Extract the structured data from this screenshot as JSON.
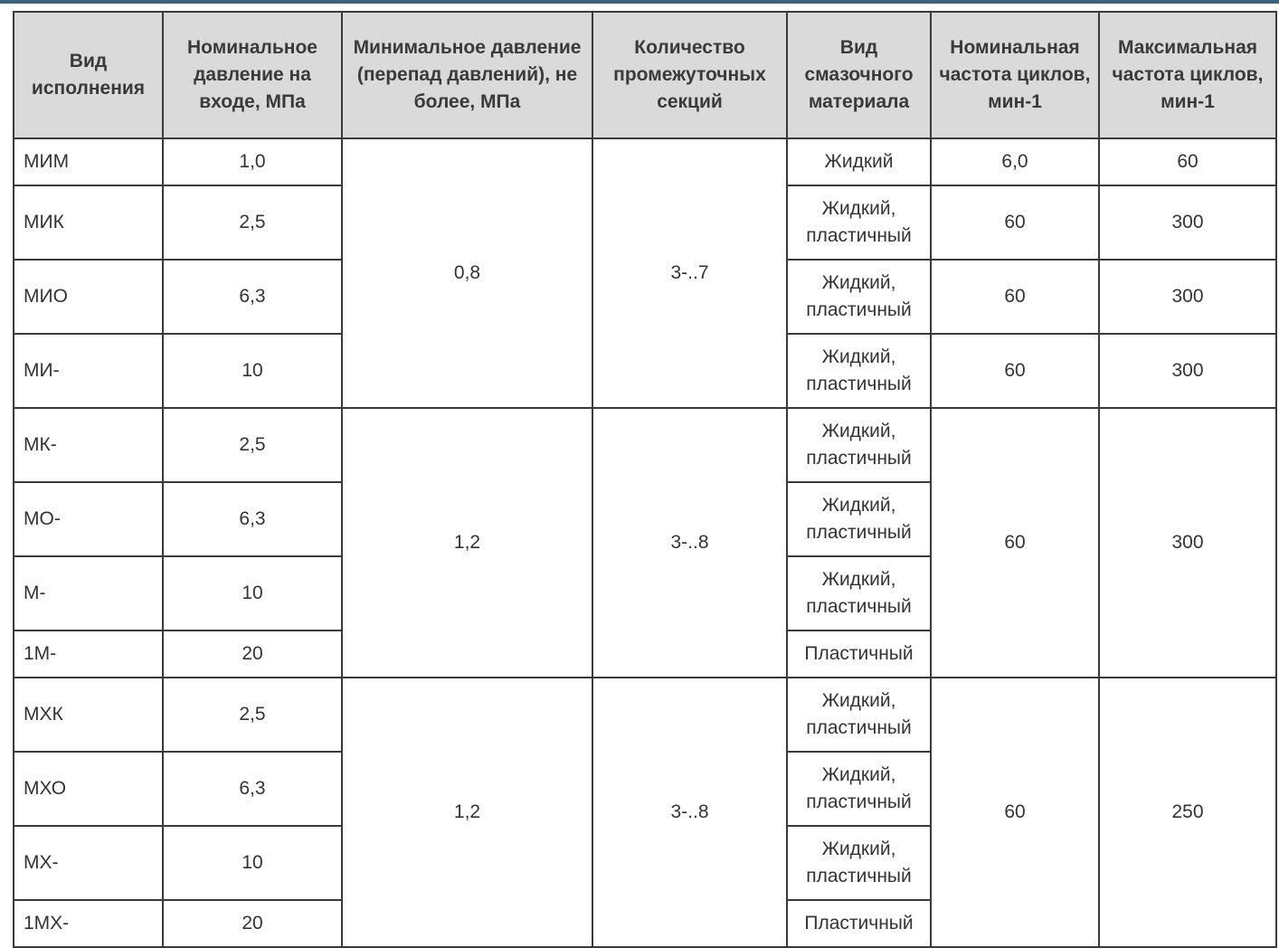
{
  "headers": [
    "Вид исполнения",
    "Номинальное давление на входе, МПа",
    "Минимальное давление (перепад давлений), не более, МПа",
    "Количество промежуточных секций",
    "Вид смазочного материала",
    "Номинальная частота циклов, мин-1",
    "Максимальная частота циклов, мин-1"
  ],
  "groups": [
    {
      "min_pressure": "0,8",
      "sections": "3-..7",
      "rows": [
        {
          "type": "МИМ",
          "pressure": "1,0",
          "lubricant": "Жидкий",
          "nominal_freq": "6,0",
          "max_freq": "60"
        },
        {
          "type": "МИК",
          "pressure": "2,5",
          "lubricant": "Жидкий, пластичный",
          "nominal_freq": "60",
          "max_freq": "300"
        },
        {
          "type": "МИО",
          "pressure": "6,3",
          "lubricant": "Жидкий, пластичный",
          "nominal_freq": "60",
          "max_freq": "300"
        },
        {
          "type": "МИ-",
          "pressure": "10",
          "lubricant": "Жидкий, пластичный",
          "nominal_freq": "60",
          "max_freq": "300"
        }
      ]
    },
    {
      "min_pressure": "1,2",
      "sections": "3-..8",
      "nominal_freq": "60",
      "max_freq": "300",
      "rows": [
        {
          "type": "МК-",
          "pressure": "2,5",
          "lubricant": "Жидкий, пластичный"
        },
        {
          "type": "МО-",
          "pressure": "6,3",
          "lubricant": "Жидкий, пластичный"
        },
        {
          "type": "М-",
          "pressure": "10",
          "lubricant": "Жидкий, пластичный"
        },
        {
          "type": "1М-",
          "pressure": "20",
          "lubricant": "Пластичный"
        }
      ]
    },
    {
      "min_pressure": "1,2",
      "sections": "3-..8",
      "nominal_freq": "60",
      "max_freq": "250",
      "rows": [
        {
          "type": "МХК",
          "pressure": "2,5",
          "lubricant": "Жидкий, пластичный"
        },
        {
          "type": "МХО",
          "pressure": "6,3",
          "lubricant": "Жидкий, пластичный"
        },
        {
          "type": "МХ-",
          "pressure": "10",
          "lubricant": "Жидкий, пластичный"
        },
        {
          "type": "1МХ-",
          "pressure": "20",
          "lubricant": "Пластичный"
        }
      ]
    }
  ]
}
